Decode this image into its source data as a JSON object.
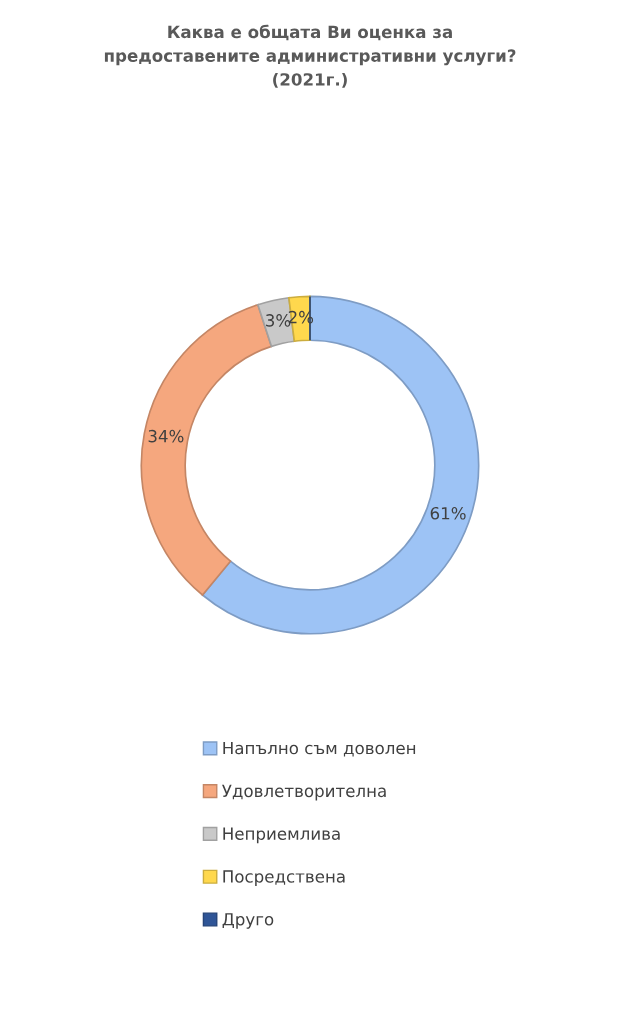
{
  "chart_data": {
    "type": "donut",
    "title": "Каква е общата Ви оценка за\nпредоставените административни услуги?\n(2021г.)",
    "categories": [
      "Напълно съм доволен",
      "Удовлетворителна",
      "Неприемлива",
      "Посредствена",
      "Друго"
    ],
    "values": [
      61,
      34,
      3,
      2,
      0
    ],
    "value_labels": [
      "61%",
      "34%",
      "3%",
      "2%",
      null
    ],
    "colors": [
      "#9dc3f5",
      "#f5a77e",
      "#c9c9c9",
      "#ffd84d",
      "#2f5597"
    ],
    "legend": "bottom"
  }
}
